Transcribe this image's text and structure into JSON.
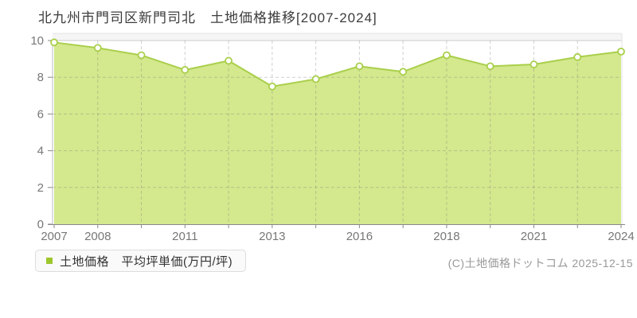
{
  "page": {
    "title": "北九州市門司区新門司北　土地価格推移[2007-2024]",
    "copyright": "(C)土地価格ドットコム 2025-12-15"
  },
  "legend": {
    "label": "土地価格　平均坪単価(万円/坪)",
    "marker_color": "#9dc62e"
  },
  "chart_data": {
    "type": "area",
    "title": "北九州市門司区新門司北 土地価格推移[2007-2024]",
    "series": [
      {
        "name": "土地価格 平均坪単価(万円/坪)",
        "values": [
          9.9,
          9.6,
          9.2,
          8.4,
          8.9,
          7.5,
          7.9,
          8.6,
          8.3,
          9.2,
          8.6,
          8.7,
          9.1,
          9.4
        ]
      }
    ],
    "x_tick_labels": [
      "2007",
      "2008",
      "",
      "2011",
      "",
      "2013",
      "",
      "2016",
      "",
      "2018",
      "",
      "2021",
      "",
      "2024"
    ],
    "x_range_label": "2007-2024",
    "y_ticks": [
      0,
      2,
      4,
      6,
      8,
      10
    ],
    "ylim": [
      0,
      10
    ],
    "unit": "万円/坪",
    "grid": true,
    "legend_position": "bottom-left",
    "colors": {
      "line": "#a9cf4b",
      "fill": "#d4e88e",
      "marker_fill": "#ffffff",
      "grid": "#cccccc",
      "axis": "#888888",
      "tick_text": "#777777",
      "top_band": "#f5f5f5"
    }
  }
}
